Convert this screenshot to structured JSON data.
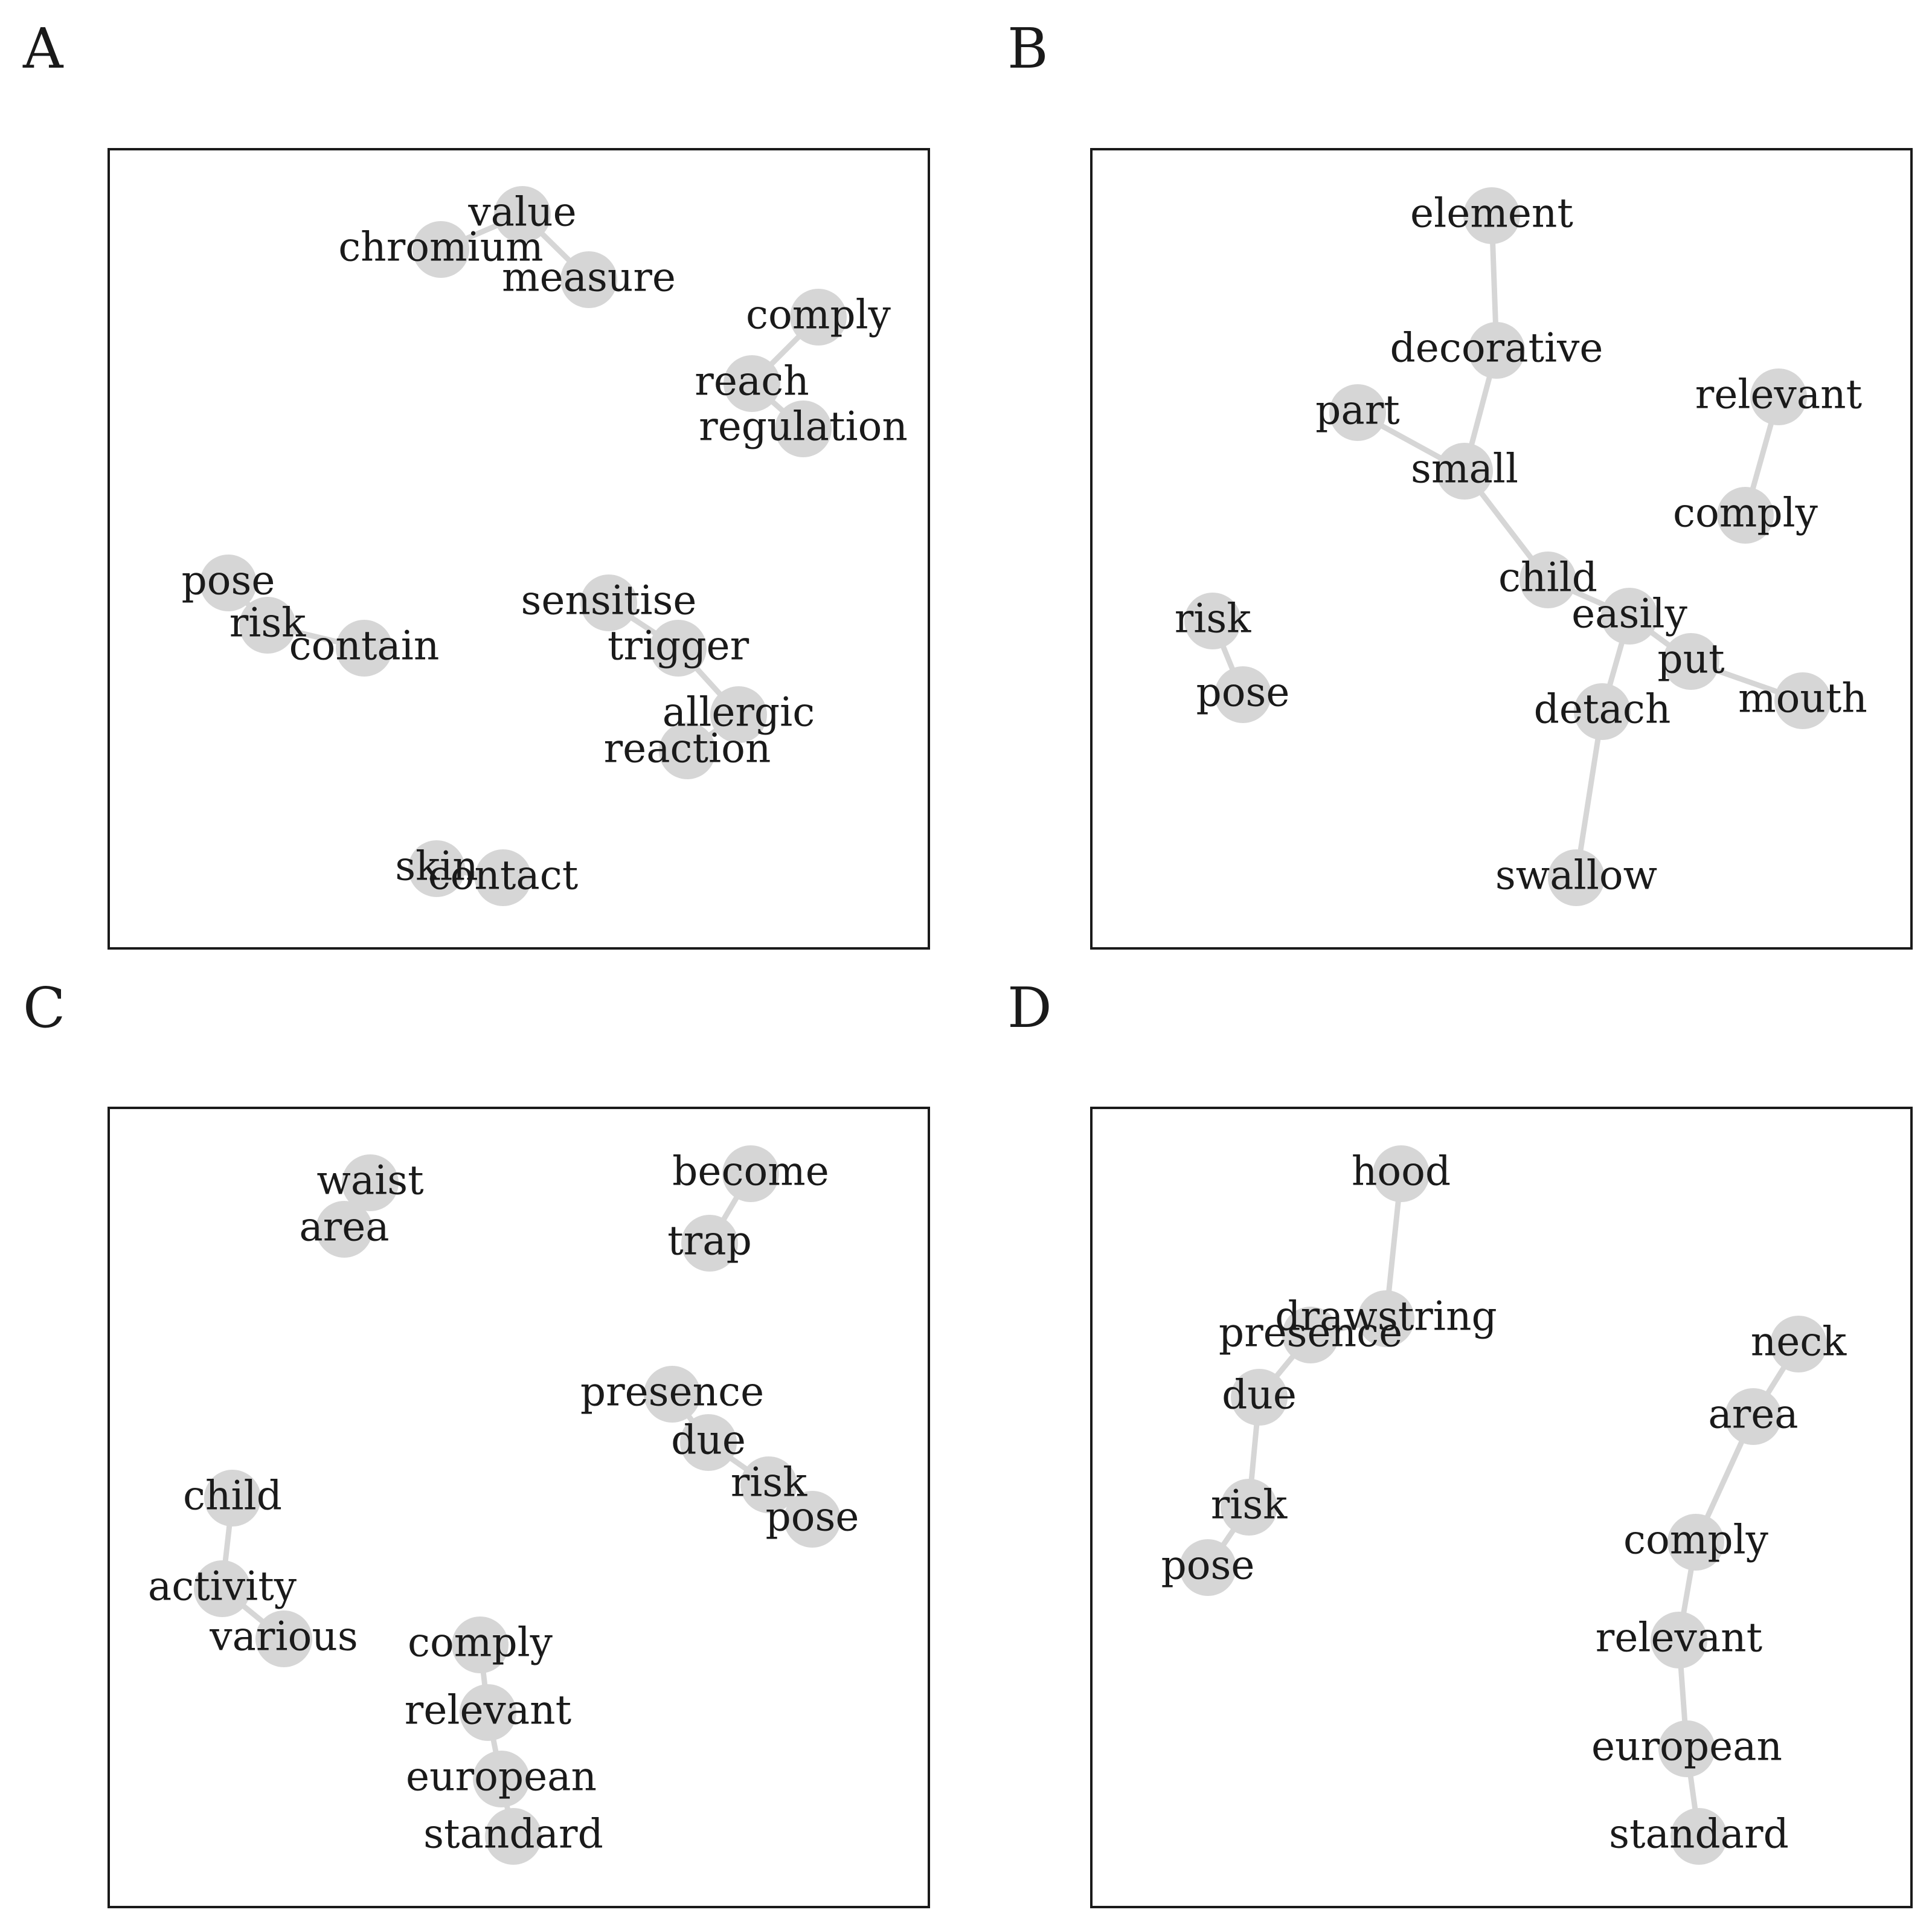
{
  "colors": {
    "node": "#d6d6d6",
    "edge": "#d6d6d6",
    "text": "#1a1a1a",
    "frame": "#1a1a1a"
  },
  "panels": [
    {
      "id": "A",
      "letter": "A",
      "nodes": [
        {
          "id": "value",
          "label": "value"
        },
        {
          "id": "chromium",
          "label": "chromium"
        },
        {
          "id": "measure",
          "label": "measure"
        },
        {
          "id": "comply",
          "label": "comply"
        },
        {
          "id": "reach",
          "label": "reach"
        },
        {
          "id": "regulation",
          "label": "regulation"
        },
        {
          "id": "pose",
          "label": "pose"
        },
        {
          "id": "risk",
          "label": "risk"
        },
        {
          "id": "contain",
          "label": "contain"
        },
        {
          "id": "sensitise",
          "label": "sensitise"
        },
        {
          "id": "trigger",
          "label": "trigger"
        },
        {
          "id": "allergic",
          "label": "allergic"
        },
        {
          "id": "reaction",
          "label": "reaction"
        },
        {
          "id": "skin",
          "label": "skin"
        },
        {
          "id": "contact",
          "label": "contact"
        }
      ],
      "edges": [
        [
          "chromium",
          "value"
        ],
        [
          "value",
          "measure"
        ],
        [
          "comply",
          "reach"
        ],
        [
          "reach",
          "regulation"
        ],
        [
          "pose",
          "risk"
        ],
        [
          "risk",
          "contain"
        ],
        [
          "sensitise",
          "trigger"
        ],
        [
          "trigger",
          "allergic"
        ],
        [
          "allergic",
          "reaction"
        ],
        [
          "skin",
          "contact"
        ]
      ]
    },
    {
      "id": "B",
      "letter": "B",
      "nodes": [
        {
          "id": "element",
          "label": "element"
        },
        {
          "id": "decorative",
          "label": "decorative"
        },
        {
          "id": "part",
          "label": "part"
        },
        {
          "id": "small",
          "label": "small"
        },
        {
          "id": "relevant",
          "label": "relevant"
        },
        {
          "id": "comply",
          "label": "comply"
        },
        {
          "id": "child",
          "label": "child"
        },
        {
          "id": "easily",
          "label": "easily"
        },
        {
          "id": "put",
          "label": "put"
        },
        {
          "id": "mouth",
          "label": "mouth"
        },
        {
          "id": "detach",
          "label": "detach"
        },
        {
          "id": "swallow",
          "label": "swallow"
        },
        {
          "id": "risk",
          "label": "risk"
        },
        {
          "id": "pose",
          "label": "pose"
        }
      ],
      "edges": [
        [
          "element",
          "decorative"
        ],
        [
          "decorative",
          "small"
        ],
        [
          "part",
          "small"
        ],
        [
          "small",
          "child"
        ],
        [
          "child",
          "easily"
        ],
        [
          "easily",
          "put"
        ],
        [
          "put",
          "mouth"
        ],
        [
          "easily",
          "detach"
        ],
        [
          "detach",
          "swallow"
        ],
        [
          "relevant",
          "comply"
        ],
        [
          "risk",
          "pose"
        ]
      ]
    },
    {
      "id": "C",
      "letter": "C",
      "nodes": [
        {
          "id": "waist",
          "label": "waist"
        },
        {
          "id": "area",
          "label": "area"
        },
        {
          "id": "become",
          "label": "become"
        },
        {
          "id": "trap",
          "label": "trap"
        },
        {
          "id": "presence",
          "label": "presence"
        },
        {
          "id": "due",
          "label": "due"
        },
        {
          "id": "risk",
          "label": "risk"
        },
        {
          "id": "pose",
          "label": "pose"
        },
        {
          "id": "child",
          "label": "child"
        },
        {
          "id": "activity",
          "label": "activity"
        },
        {
          "id": "various",
          "label": "various"
        },
        {
          "id": "comply",
          "label": "comply"
        },
        {
          "id": "relevant",
          "label": "relevant"
        },
        {
          "id": "european",
          "label": "european"
        },
        {
          "id": "standard",
          "label": "standard"
        }
      ],
      "edges": [
        [
          "waist",
          "area"
        ],
        [
          "become",
          "trap"
        ],
        [
          "presence",
          "due"
        ],
        [
          "due",
          "risk"
        ],
        [
          "risk",
          "pose"
        ],
        [
          "child",
          "activity"
        ],
        [
          "activity",
          "various"
        ],
        [
          "comply",
          "relevant"
        ],
        [
          "relevant",
          "european"
        ],
        [
          "european",
          "standard"
        ]
      ]
    },
    {
      "id": "D",
      "letter": "D",
      "nodes": [
        {
          "id": "hood",
          "label": "hood"
        },
        {
          "id": "drawstring",
          "label": "drawstring"
        },
        {
          "id": "presence",
          "label": "presence"
        },
        {
          "id": "due",
          "label": "due"
        },
        {
          "id": "risk",
          "label": "risk"
        },
        {
          "id": "pose",
          "label": "pose"
        },
        {
          "id": "neck",
          "label": "neck"
        },
        {
          "id": "area",
          "label": "area"
        },
        {
          "id": "comply",
          "label": "comply"
        },
        {
          "id": "relevant",
          "label": "relevant"
        },
        {
          "id": "european",
          "label": "european"
        },
        {
          "id": "standard",
          "label": "standard"
        }
      ],
      "edges": [
        [
          "hood",
          "drawstring"
        ],
        [
          "drawstring",
          "presence"
        ],
        [
          "presence",
          "due"
        ],
        [
          "due",
          "risk"
        ],
        [
          "risk",
          "pose"
        ],
        [
          "neck",
          "area"
        ],
        [
          "area",
          "comply"
        ],
        [
          "comply",
          "relevant"
        ],
        [
          "relevant",
          "european"
        ],
        [
          "european",
          "standard"
        ]
      ]
    }
  ]
}
